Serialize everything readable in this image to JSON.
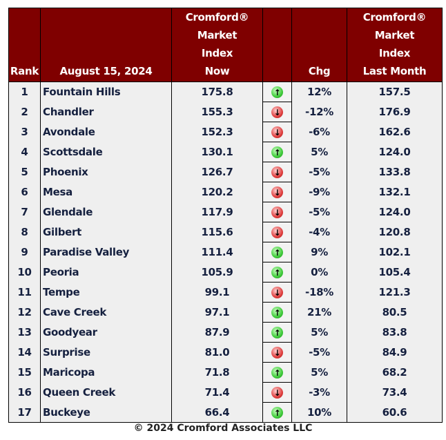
{
  "chart_data": {
    "type": "table",
    "columns": [
      "Rank",
      "August 15, 2024",
      "Cromford® Market Index Now",
      "",
      "Chg",
      "Cromford® Market Index Last Month"
    ],
    "header_lines": {
      "rank": [
        "Rank"
      ],
      "date": [
        "August 15, 2024"
      ],
      "now": [
        "Cromford®",
        "Market",
        "Index",
        "Now"
      ],
      "chg": [
        "Chg"
      ],
      "last": [
        "Cromford®",
        "Market",
        "Index",
        "Last Month"
      ]
    },
    "rows": [
      {
        "rank": "1",
        "name": "Fountain Hills",
        "now": "175.8",
        "dir": "up",
        "chg": "12%",
        "last": "157.5"
      },
      {
        "rank": "2",
        "name": "Chandler",
        "now": "155.3",
        "dir": "down",
        "chg": "-12%",
        "last": "176.9"
      },
      {
        "rank": "3",
        "name": "Avondale",
        "now": "152.3",
        "dir": "down",
        "chg": "-6%",
        "last": "162.6"
      },
      {
        "rank": "4",
        "name": "Scottsdale",
        "now": "130.1",
        "dir": "up",
        "chg": "5%",
        "last": "124.0"
      },
      {
        "rank": "5",
        "name": "Phoenix",
        "now": "126.7",
        "dir": "down",
        "chg": "-5%",
        "last": "133.8"
      },
      {
        "rank": "6",
        "name": "Mesa",
        "now": "120.2",
        "dir": "down",
        "chg": "-9%",
        "last": "132.1"
      },
      {
        "rank": "7",
        "name": "Glendale",
        "now": "117.9",
        "dir": "down",
        "chg": "-5%",
        "last": "124.0"
      },
      {
        "rank": "8",
        "name": "Gilbert",
        "now": "115.6",
        "dir": "down",
        "chg": "-4%",
        "last": "120.8"
      },
      {
        "rank": "9",
        "name": "Paradise Valley",
        "now": "111.4",
        "dir": "up",
        "chg": "9%",
        "last": "102.1"
      },
      {
        "rank": "10",
        "name": "Peoria",
        "now": "105.9",
        "dir": "up",
        "chg": "0%",
        "last": "105.4"
      },
      {
        "rank": "11",
        "name": "Tempe",
        "now": "99.1",
        "dir": "down",
        "chg": "-18%",
        "last": "121.3"
      },
      {
        "rank": "12",
        "name": "Cave Creek",
        "now": "97.1",
        "dir": "up",
        "chg": "21%",
        "last": "80.5"
      },
      {
        "rank": "13",
        "name": "Goodyear",
        "now": "87.9",
        "dir": "up",
        "chg": "5%",
        "last": "83.8"
      },
      {
        "rank": "14",
        "name": "Surprise",
        "now": "81.0",
        "dir": "down",
        "chg": "-5%",
        "last": "84.9"
      },
      {
        "rank": "15",
        "name": "Maricopa",
        "now": "71.8",
        "dir": "up",
        "chg": "5%",
        "last": "68.2"
      },
      {
        "rank": "16",
        "name": "Queen Creek",
        "now": "71.4",
        "dir": "down",
        "chg": "-3%",
        "last": "73.4"
      },
      {
        "rank": "17",
        "name": "Buckeye",
        "now": "66.4",
        "dir": "up",
        "chg": "10%",
        "last": "60.6"
      }
    ],
    "colors": {
      "header_bg": "#7f0000",
      "header_text": "#ffffff",
      "body_text": "#15203f",
      "up": "#3fcb3a",
      "down": "#e04040"
    }
  },
  "footer": "© 2024 Cromford Associates LLC"
}
